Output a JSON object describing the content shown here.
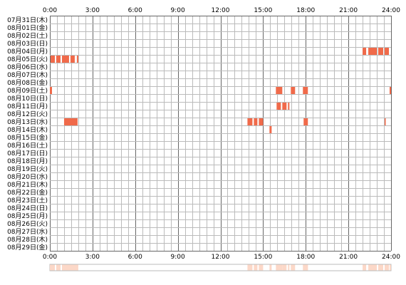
{
  "chart_data": {
    "type": "heatmap",
    "x_ticks": [
      "0:00",
      "3:00",
      "6:00",
      "9:00",
      "12:00",
      "15:00",
      "18:00",
      "21:00",
      "24:00"
    ],
    "x_range_hours": [
      0,
      24
    ],
    "rows": [
      "07月31日(木)",
      "08月01日(金)",
      "08月02日(土)",
      "08月03日(日)",
      "08月04日(月)",
      "08月05日(火)",
      "08月06日(水)",
      "08月07日(木)",
      "08月08日(金)",
      "08月09日(土)",
      "08月10日(日)",
      "08月11日(月)",
      "08月12日(火)",
      "08月13日(水)",
      "08月14日(木)",
      "08月15日(金)",
      "08月16日(土)",
      "08月17日(日)",
      "08月18日(月)",
      "08月19日(火)",
      "08月20日(水)",
      "08月21日(木)",
      "08月22日(金)",
      "08月23日(土)",
      "08月24日(日)",
      "08月25日(月)",
      "08月26日(火)",
      "08月27日(水)",
      "08月28日(木)",
      "08月29日(金)"
    ],
    "activity": [
      {
        "day": 4,
        "start": 22.0,
        "end": 22.25
      },
      {
        "day": 4,
        "start": 22.4,
        "end": 23.0
      },
      {
        "day": 4,
        "start": 23.1,
        "end": 23.45
      },
      {
        "day": 4,
        "start": 23.55,
        "end": 23.85
      },
      {
        "day": 5,
        "start": 0.05,
        "end": 0.35
      },
      {
        "day": 5,
        "start": 0.45,
        "end": 0.75
      },
      {
        "day": 5,
        "start": 0.85,
        "end": 1.35
      },
      {
        "day": 5,
        "start": 1.45,
        "end": 1.75
      },
      {
        "day": 5,
        "start": 1.9,
        "end": 2.0
      },
      {
        "day": 9,
        "start": 0.0,
        "end": 0.15
      },
      {
        "day": 9,
        "start": 15.9,
        "end": 16.35
      },
      {
        "day": 9,
        "start": 16.95,
        "end": 17.25
      },
      {
        "day": 9,
        "start": 17.8,
        "end": 18.15
      },
      {
        "day": 9,
        "start": 23.9,
        "end": 24.0
      },
      {
        "day": 11,
        "start": 15.95,
        "end": 16.25
      },
      {
        "day": 11,
        "start": 16.35,
        "end": 16.65
      },
      {
        "day": 11,
        "start": 16.75,
        "end": 16.85
      },
      {
        "day": 13,
        "start": 1.0,
        "end": 1.95
      },
      {
        "day": 13,
        "start": 13.9,
        "end": 14.25
      },
      {
        "day": 13,
        "start": 14.35,
        "end": 14.6
      },
      {
        "day": 13,
        "start": 14.7,
        "end": 15.0
      },
      {
        "day": 13,
        "start": 17.85,
        "end": 18.15
      },
      {
        "day": 13,
        "start": 23.55,
        "end": 23.6
      },
      {
        "day": 14,
        "start": 15.45,
        "end": 15.6
      }
    ],
    "summary_bar": true,
    "grid": true,
    "colors": {
      "active": "#f06a4a",
      "grid": "#bbbbbb",
      "grid_major": "#666666",
      "summary": "#fcd8c8"
    }
  }
}
